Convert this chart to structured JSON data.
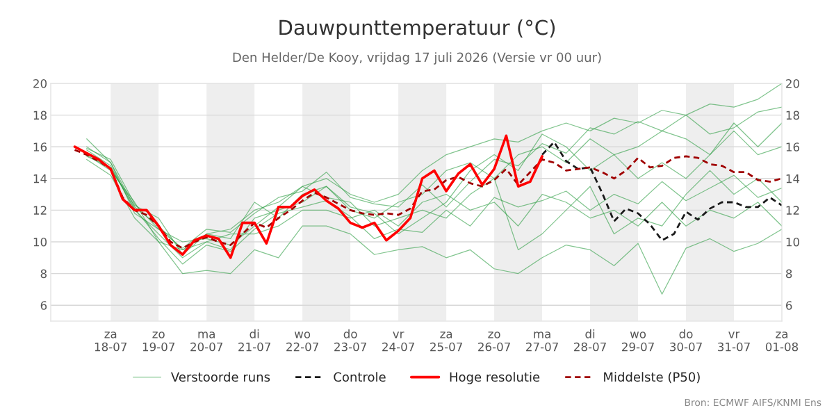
{
  "chart_data": {
    "type": "line",
    "title": "Dauwpunttemperatuur (°C)",
    "subtitle": "Den Helder/De Kooy, vrijdag 17 juli 2026 (Versie vr 00 uur)",
    "annotations": [
      "Bron: ECMWF AIFS/KNMI Ens"
    ],
    "x": [
      "2026-07-17T06:00",
      "2026-07-17T12:00",
      "2026-07-17T18:00",
      "2026-07-18T00:00",
      "2026-07-18T06:00",
      "2026-07-18T12:00",
      "2026-07-18T18:00",
      "2026-07-19T00:00",
      "2026-07-19T06:00",
      "2026-07-19T12:00",
      "2026-07-19T18:00",
      "2026-07-20T00:00",
      "2026-07-20T06:00",
      "2026-07-20T12:00",
      "2026-07-20T18:00",
      "2026-07-21T00:00",
      "2026-07-21T06:00",
      "2026-07-21T12:00",
      "2026-07-21T18:00",
      "2026-07-22T00:00",
      "2026-07-22T06:00",
      "2026-07-22T12:00",
      "2026-07-22T18:00",
      "2026-07-23T00:00",
      "2026-07-23T06:00",
      "2026-07-23T12:00",
      "2026-07-23T18:00",
      "2026-07-24T00:00",
      "2026-07-24T06:00",
      "2026-07-24T12:00",
      "2026-07-24T18:00",
      "2026-07-25T00:00",
      "2026-07-25T06:00",
      "2026-07-25T12:00",
      "2026-07-25T18:00",
      "2026-07-26T00:00",
      "2026-07-26T06:00",
      "2026-07-26T12:00",
      "2026-07-26T18:00",
      "2026-07-27T00:00",
      "2026-07-27T06:00",
      "2026-07-27T12:00",
      "2026-07-27T18:00",
      "2026-07-28T00:00",
      "2026-07-28T06:00",
      "2026-07-28T12:00",
      "2026-07-28T18:00",
      "2026-07-29T00:00",
      "2026-07-29T06:00",
      "2026-07-29T12:00",
      "2026-07-29T18:00",
      "2026-07-30T00:00",
      "2026-07-30T06:00",
      "2026-07-30T12:00",
      "2026-07-30T18:00",
      "2026-07-31T00:00",
      "2026-07-31T06:00",
      "2026-07-31T12:00",
      "2026-07-31T18:00",
      "2026-08-01T00:00"
    ],
    "series": [
      {
        "name": "Verstoorde runs",
        "color": "#2e9e44",
        "line_style": "solid",
        "x": [
          "2026-07-17T12:00",
          "2026-07-18T00:00",
          "2026-07-18T12:00",
          "2026-07-19T00:00",
          "2026-07-19T12:00",
          "2026-07-20T00:00",
          "2026-07-20T12:00",
          "2026-07-21T00:00",
          "2026-07-21T12:00",
          "2026-07-22T00:00",
          "2026-07-22T12:00",
          "2026-07-23T00:00",
          "2026-07-23T12:00",
          "2026-07-24T00:00",
          "2026-07-24T12:00",
          "2026-07-25T00:00",
          "2026-07-25T12:00",
          "2026-07-26T00:00",
          "2026-07-26T12:00",
          "2026-07-27T00:00",
          "2026-07-27T12:00",
          "2026-07-28T00:00",
          "2026-07-28T12:00",
          "2026-07-29T00:00",
          "2026-07-29T12:00",
          "2026-07-30T00:00",
          "2026-07-30T12:00",
          "2026-07-31T00:00",
          "2026-07-31T12:00",
          "2026-08-01T00:00"
        ],
        "values": [
          16.5,
          15.0,
          12.2,
          11.0,
          9.5,
          10.5,
          10.8,
          12.0,
          12.5,
          13.5,
          14.0,
          13.0,
          12.5,
          13.0,
          14.5,
          15.5,
          16.0,
          16.5,
          16.3,
          17.0,
          17.5,
          17.0,
          17.8,
          17.5,
          18.3,
          18.0,
          18.7,
          18.5,
          19.0,
          20.0
        ]
      },
      {
        "color": "#2e9e44",
        "line_style": "solid",
        "x": [
          "2026-07-17T12:00",
          "2026-07-18T00:00",
          "2026-07-18T12:00",
          "2026-07-19T00:00",
          "2026-07-19T12:00",
          "2026-07-20T00:00",
          "2026-07-20T12:00",
          "2026-07-21T00:00",
          "2026-07-21T12:00",
          "2026-07-22T00:00",
          "2026-07-22T12:00",
          "2026-07-23T00:00",
          "2026-07-23T12:00",
          "2026-07-24T00:00",
          "2026-07-24T12:00",
          "2026-07-25T00:00",
          "2026-07-25T12:00",
          "2026-07-26T00:00",
          "2026-07-26T12:00",
          "2026-07-27T00:00",
          "2026-07-27T12:00",
          "2026-07-28T00:00",
          "2026-07-28T12:00",
          "2026-07-29T00:00",
          "2026-07-29T12:00",
          "2026-07-30T00:00",
          "2026-07-30T12:00",
          "2026-07-31T00:00",
          "2026-07-31T12:00",
          "2026-08-01T00:00"
        ],
        "values": [
          15.2,
          14.2,
          11.5,
          10.0,
          8.0,
          8.2,
          8.0,
          9.5,
          9.0,
          11.0,
          11.0,
          10.5,
          9.2,
          9.5,
          9.7,
          9.0,
          9.5,
          8.3,
          8.0,
          9.0,
          9.8,
          9.5,
          8.5,
          9.9,
          6.7,
          9.6,
          10.2,
          9.4,
          9.9,
          10.8
        ]
      },
      {
        "color": "#2e9e44",
        "line_style": "solid",
        "x": [
          "2026-07-17T12:00",
          "2026-07-18T00:00",
          "2026-07-18T12:00",
          "2026-07-19T00:00",
          "2026-07-19T12:00",
          "2026-07-20T00:00",
          "2026-07-20T12:00",
          "2026-07-21T00:00",
          "2026-07-21T12:00",
          "2026-07-22T00:00",
          "2026-07-22T12:00",
          "2026-07-23T00:00",
          "2026-07-23T12:00",
          "2026-07-24T00:00",
          "2026-07-24T12:00",
          "2026-07-25T00:00",
          "2026-07-25T12:00",
          "2026-07-26T00:00",
          "2026-07-26T12:00",
          "2026-07-27T00:00",
          "2026-07-27T12:00",
          "2026-07-28T00:00",
          "2026-07-28T12:00",
          "2026-07-29T00:00",
          "2026-07-29T12:00",
          "2026-07-30T00:00",
          "2026-07-30T12:00",
          "2026-07-31T00:00",
          "2026-07-31T12:00",
          "2026-08-01T00:00"
        ],
        "values": [
          15.8,
          14.8,
          12.0,
          10.5,
          9.0,
          10.0,
          9.5,
          11.5,
          12.0,
          12.5,
          13.5,
          12.0,
          11.5,
          12.5,
          13.0,
          14.5,
          15.0,
          14.0,
          15.5,
          16.0,
          15.0,
          16.5,
          15.5,
          16.0,
          17.0,
          16.5,
          15.5,
          17.5,
          16.0,
          17.5
        ]
      },
      {
        "color": "#2e9e44",
        "line_style": "solid",
        "x": [
          "2026-07-17T12:00",
          "2026-07-18T00:00",
          "2026-07-18T12:00",
          "2026-07-19T00:00",
          "2026-07-19T12:00",
          "2026-07-20T00:00",
          "2026-07-20T12:00",
          "2026-07-21T00:00",
          "2026-07-21T12:00",
          "2026-07-22T00:00",
          "2026-07-22T12:00",
          "2026-07-23T00:00",
          "2026-07-23T12:00",
          "2026-07-24T00:00",
          "2026-07-24T12:00",
          "2026-07-25T00:00",
          "2026-07-25T12:00",
          "2026-07-26T00:00",
          "2026-07-26T12:00",
          "2026-07-27T00:00",
          "2026-07-27T12:00",
          "2026-07-28T00:00",
          "2026-07-28T12:00",
          "2026-07-29T00:00",
          "2026-07-29T12:00",
          "2026-07-30T00:00",
          "2026-07-30T12:00",
          "2026-07-31T00:00",
          "2026-07-31T12:00",
          "2026-08-01T00:00"
        ],
        "values": [
          15.5,
          14.5,
          12.5,
          10.0,
          9.5,
          10.0,
          10.5,
          10.5,
          11.0,
          12.0,
          12.0,
          11.5,
          12.0,
          11.0,
          12.5,
          13.0,
          12.0,
          12.5,
          11.0,
          13.0,
          12.5,
          11.5,
          12.0,
          11.0,
          12.5,
          11.0,
          12.0,
          11.5,
          12.5,
          11.0
        ]
      },
      {
        "color": "#2e9e44",
        "line_style": "solid",
        "x": [
          "2026-07-17T12:00",
          "2026-07-18T00:00",
          "2026-07-18T12:00",
          "2026-07-19T00:00",
          "2026-07-19T12:00",
          "2026-07-20T00:00",
          "2026-07-20T12:00",
          "2026-07-21T00:00",
          "2026-07-21T12:00",
          "2026-07-22T00:00",
          "2026-07-22T12:00",
          "2026-07-23T00:00",
          "2026-07-23T12:00",
          "2026-07-24T00:00",
          "2026-07-24T12:00",
          "2026-07-25T00:00",
          "2026-07-25T12:00",
          "2026-07-26T00:00",
          "2026-07-26T12:00",
          "2026-07-27T00:00",
          "2026-07-27T12:00",
          "2026-07-28T00:00",
          "2026-07-28T12:00",
          "2026-07-29T00:00",
          "2026-07-29T12:00",
          "2026-07-30T00:00",
          "2026-07-30T12:00",
          "2026-07-31T00:00",
          "2026-07-31T12:00",
          "2026-08-01T00:00"
        ],
        "values": [
          16.0,
          15.0,
          11.8,
          10.8,
          10.0,
          10.2,
          9.8,
          11.0,
          12.2,
          13.5,
          12.8,
          12.5,
          11.0,
          11.5,
          12.0,
          11.5,
          13.0,
          14.0,
          9.5,
          10.5,
          12.0,
          13.5,
          10.5,
          11.5,
          11.0,
          13.0,
          14.5,
          13.0,
          14.0,
          12.5
        ]
      },
      {
        "color": "#2e9e44",
        "line_style": "solid",
        "x": [
          "2026-07-17T12:00",
          "2026-07-18T00:00",
          "2026-07-18T12:00",
          "2026-07-19T00:00",
          "2026-07-19T12:00",
          "2026-07-20T00:00",
          "2026-07-20T12:00",
          "2026-07-21T00:00",
          "2026-07-21T12:00",
          "2026-07-22T00:00",
          "2026-07-22T12:00",
          "2026-07-23T00:00",
          "2026-07-23T12:00",
          "2026-07-24T00:00",
          "2026-07-24T12:00",
          "2026-07-25T00:00",
          "2026-07-25T12:00",
          "2026-07-26T00:00",
          "2026-07-26T12:00",
          "2026-07-27T00:00",
          "2026-07-27T12:00",
          "2026-07-28T00:00",
          "2026-07-28T12:00",
          "2026-07-29T00:00",
          "2026-07-29T12:00",
          "2026-07-30T00:00",
          "2026-07-30T12:00",
          "2026-07-31T00:00",
          "2026-07-31T12:00",
          "2026-08-01T00:00"
        ],
        "values": [
          15.6,
          14.6,
          12.3,
          11.5,
          9.2,
          10.5,
          10.2,
          12.5,
          11.5,
          13.0,
          13.5,
          12.2,
          11.8,
          10.5,
          11.5,
          12.5,
          14.5,
          15.5,
          14.5,
          16.8,
          16.0,
          14.5,
          15.5,
          14.0,
          15.0,
          14.0,
          15.5,
          17.0,
          15.5,
          16.0
        ]
      },
      {
        "color": "#2e9e44",
        "line_style": "solid",
        "x": [
          "2026-07-17T12:00",
          "2026-07-18T00:00",
          "2026-07-18T12:00",
          "2026-07-19T00:00",
          "2026-07-19T12:00",
          "2026-07-20T00:00",
          "2026-07-20T12:00",
          "2026-07-21T00:00",
          "2026-07-21T12:00",
          "2026-07-22T00:00",
          "2026-07-22T12:00",
          "2026-07-23T00:00",
          "2026-07-23T12:00",
          "2026-07-24T00:00",
          "2026-07-24T12:00",
          "2026-07-25T00:00",
          "2026-07-25T12:00",
          "2026-07-26T00:00",
          "2026-07-26T12:00",
          "2026-07-27T00:00",
          "2026-07-27T12:00",
          "2026-07-28T00:00",
          "2026-07-28T12:00",
          "2026-07-29T00:00",
          "2026-07-29T12:00",
          "2026-07-30T00:00",
          "2026-07-30T12:00",
          "2026-07-31T00:00",
          "2026-07-31T12:00",
          "2026-08-01T00:00"
        ],
        "values": [
          15.9,
          15.2,
          12.4,
          10.8,
          9.6,
          10.8,
          10.6,
          11.8,
          12.8,
          13.2,
          14.4,
          12.8,
          12.4,
          12.2,
          13.6,
          12.2,
          13.8,
          15.2,
          14.8,
          16.2,
          15.6,
          17.2,
          16.8,
          17.6,
          17.0,
          18.0,
          16.8,
          17.2,
          18.2,
          18.5
        ]
      },
      {
        "color": "#2e9e44",
        "line_style": "solid",
        "x": [
          "2026-07-17T12:00",
          "2026-07-18T00:00",
          "2026-07-18T12:00",
          "2026-07-19T00:00",
          "2026-07-19T12:00",
          "2026-07-20T00:00",
          "2026-07-20T12:00",
          "2026-07-21T00:00",
          "2026-07-21T12:00",
          "2026-07-22T00:00",
          "2026-07-22T12:00",
          "2026-07-23T00:00",
          "2026-07-23T12:00",
          "2026-07-24T00:00",
          "2026-07-24T12:00",
          "2026-07-25T00:00",
          "2026-07-25T12:00",
          "2026-07-26T00:00",
          "2026-07-26T12:00",
          "2026-07-27T00:00",
          "2026-07-27T12:00",
          "2026-07-28T00:00",
          "2026-07-28T12:00",
          "2026-07-29T00:00",
          "2026-07-29T12:00",
          "2026-07-30T00:00",
          "2026-07-30T12:00",
          "2026-07-31T00:00",
          "2026-07-31T12:00",
          "2026-08-01T00:00"
        ],
        "values": [
          15.4,
          14.7,
          12.1,
          10.2,
          8.6,
          9.8,
          9.4,
          10.8,
          11.8,
          12.2,
          12.6,
          11.6,
          10.2,
          10.8,
          10.6,
          12.0,
          11.0,
          12.8,
          12.2,
          12.6,
          13.2,
          12.0,
          13.0,
          12.4,
          13.8,
          12.6,
          13.4,
          14.2,
          12.8,
          13.4
        ]
      },
      {
        "name": "Controle",
        "color": "#1a1a1a",
        "line_style": "dashed",
        "values": [
          null,
          null,
          null,
          null,
          null,
          null,
          null,
          null,
          null,
          null,
          null,
          null,
          null,
          null,
          null,
          null,
          null,
          null,
          null,
          null,
          null,
          null,
          null,
          null,
          null,
          null,
          null,
          null,
          null,
          null,
          null,
          null,
          null,
          null,
          null,
          null,
          null,
          null,
          null,
          15.5,
          16.3,
          15.1,
          14.6,
          14.7,
          13.1,
          11.3,
          12.1,
          11.8,
          11.1,
          10.1,
          10.5,
          11.9,
          11.4,
          12.1,
          12.5,
          12.5,
          12.2,
          12.2,
          12.8,
          12.3
        ]
      },
      {
        "name": "Hoge resolutie",
        "color": "#ff0000",
        "line_style": "solid",
        "values": [
          16.0,
          15.6,
          15.2,
          14.6,
          12.7,
          12.0,
          12.0,
          11.0,
          9.8,
          9.2,
          10.1,
          10.4,
          10.2,
          9.0,
          11.2,
          11.2,
          9.9,
          12.2,
          12.2,
          12.9,
          13.3,
          12.6,
          12.1,
          11.2,
          10.9,
          11.2,
          10.1,
          10.7,
          11.5,
          14.0,
          14.5,
          13.2,
          14.3,
          14.9,
          13.6,
          14.6,
          16.7,
          13.5,
          13.8,
          15.4,
          null,
          null,
          null,
          null,
          null,
          null,
          null,
          null,
          null,
          null,
          null,
          null,
          null,
          null,
          null,
          null,
          null,
          null,
          null,
          null
        ]
      },
      {
        "name": "Middelste (P50)",
        "color": "#a00000",
        "line_style": "dashed",
        "values": [
          15.8,
          15.5,
          15.1,
          14.6,
          12.8,
          12.0,
          11.7,
          11.0,
          10.0,
          9.6,
          10.0,
          10.3,
          10.0,
          9.8,
          10.5,
          11.2,
          10.9,
          11.5,
          12.0,
          12.6,
          13.1,
          12.8,
          12.4,
          12.0,
          11.8,
          11.7,
          11.8,
          11.7,
          12.1,
          13.2,
          13.3,
          13.9,
          14.1,
          13.7,
          13.5,
          13.9,
          14.6,
          13.6,
          14.4,
          15.2,
          15.0,
          14.5,
          14.6,
          14.7,
          14.4,
          14.0,
          14.5,
          15.3,
          14.7,
          14.8,
          15.3,
          15.4,
          15.3,
          14.9,
          14.8,
          14.4,
          14.4,
          13.9,
          13.8,
          14.0
        ]
      }
    ],
    "bands": [
      {
        "axis": "x",
        "from": "2026-07-18",
        "to": "2026-07-19",
        "color": "#eeeeee"
      },
      {
        "axis": "x",
        "from": "2026-07-20",
        "to": "2026-07-21",
        "color": "#eeeeee"
      },
      {
        "axis": "x",
        "from": "2026-07-22",
        "to": "2026-07-23",
        "color": "#eeeeee"
      },
      {
        "axis": "x",
        "from": "2026-07-24",
        "to": "2026-07-25",
        "color": "#eeeeee"
      },
      {
        "axis": "x",
        "from": "2026-07-26",
        "to": "2026-07-27",
        "color": "#eeeeee"
      },
      {
        "axis": "x",
        "from": "2026-07-28",
        "to": "2026-07-29",
        "color": "#eeeeee"
      },
      {
        "axis": "x",
        "from": "2026-07-30",
        "to": "2026-07-31",
        "color": "#eeeeee"
      }
    ],
    "xlim": [
      "2026-07-16T18:00",
      "2026-08-01T00:00"
    ],
    "xticks": [
      {
        "value": "2026-07-18",
        "label": "za\n18-07"
      },
      {
        "value": "2026-07-19",
        "label": "zo\n19-07"
      },
      {
        "value": "2026-07-20",
        "label": "ma\n20-07"
      },
      {
        "value": "2026-07-21",
        "label": "di\n21-07"
      },
      {
        "value": "2026-07-22",
        "label": "wo\n22-07"
      },
      {
        "value": "2026-07-23",
        "label": "do\n23-07"
      },
      {
        "value": "2026-07-24",
        "label": "vr\n24-07"
      },
      {
        "value": "2026-07-25",
        "label": "za\n25-07"
      },
      {
        "value": "2026-07-26",
        "label": "zo\n26-07"
      },
      {
        "value": "2026-07-27",
        "label": "ma\n27-07"
      },
      {
        "value": "2026-07-28",
        "label": "di\n28-07"
      },
      {
        "value": "2026-07-29",
        "label": "wo\n29-07"
      },
      {
        "value": "2026-07-30",
        "label": "do\n30-07"
      },
      {
        "value": "2026-07-31",
        "label": "vr\n31-07"
      },
      {
        "value": "2026-08-01",
        "label": "za\n01-08"
      }
    ],
    "ylim": [
      5,
      20
    ],
    "yticks": [
      6,
      8,
      10,
      12,
      14,
      16,
      18,
      20
    ],
    "y2lim": [
      5,
      20
    ],
    "y2ticks": [
      6,
      8,
      10,
      12,
      14,
      16,
      18,
      20
    ],
    "grid": "y",
    "legend": "bottom",
    "marker": "none"
  }
}
